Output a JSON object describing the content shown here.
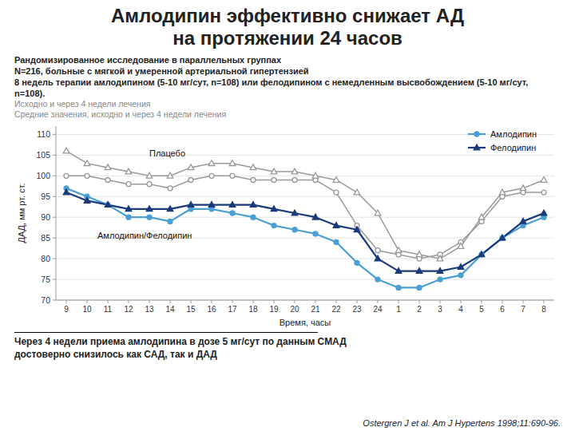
{
  "chart_data": {
    "type": "line",
    "title": [
      "Амлодипин эффективно снижает АД",
      "на протяжении 24 часов"
    ],
    "subtitle": [
      "Рандомизированное исследование в параллельных группах",
      "N=216, больные с мягкой и умеренной артериальной гипертензией",
      "8 недель терапии амлодипином (5-10 мг/сут, n=108) или фелодипином с немедленным высвобождением (5-10 мг/сут, n=108).",
      "Исходно и через 4 недели лечения",
      "Средние значения, исходно и через 4 недели лечения"
    ],
    "x_label": "Время, часы",
    "y_label": "ДАД, мм рт. ст.",
    "categories": [
      "9",
      "10",
      "11",
      "12",
      "13",
      "14",
      "15",
      "16",
      "17",
      "18",
      "19",
      "20",
      "21",
      "22",
      "23",
      "24",
      "1",
      "2",
      "3",
      "4",
      "5",
      "6",
      "7",
      "8"
    ],
    "ylim": [
      70,
      112
    ],
    "yticks": [
      70,
      75,
      80,
      85,
      90,
      95,
      100,
      105,
      110
    ],
    "grid": true,
    "legend": "upper right",
    "series": [
      {
        "color": "#999999",
        "marker": "circle",
        "values": [
          100,
          100,
          99,
          98,
          98,
          97,
          99,
          100,
          100,
          99,
          99,
          99,
          99,
          96,
          88,
          82,
          81,
          80,
          81,
          84,
          89,
          95,
          96,
          96
        ]
      },
      {
        "color": "#999999",
        "marker": "triangle",
        "values": [
          106,
          103,
          102,
          101,
          100,
          100,
          102,
          103,
          103,
          102,
          101,
          101,
          100,
          99,
          96,
          91,
          82,
          81,
          80,
          83,
          90,
          96,
          97,
          99
        ]
      },
      {
        "name": "Амлодипин",
        "color": "#4a9fd4",
        "marker": "circle",
        "values": [
          97,
          95,
          93,
          90,
          90,
          89,
          92,
          92,
          91,
          90,
          88,
          87,
          86,
          84,
          79,
          75,
          73,
          73,
          75,
          76,
          81,
          85,
          88,
          90
        ]
      },
      {
        "name": "Фелодипин",
        "color": "#1a3a7a",
        "marker": "triangle",
        "values": [
          96,
          94,
          93,
          92,
          92,
          92,
          93,
          93,
          93,
          93,
          92,
          91,
          90,
          88,
          87,
          80,
          77,
          77,
          77,
          78,
          81,
          85,
          89,
          91
        ]
      }
    ],
    "annotations": [
      "Плацебо",
      "Амлодипин/Фелодипин"
    ],
    "footnote": "Через 4 недели приема амлодипина в дозе 5 мг/сут по данным СМАД\nдостоверно снизилось как САД, так и ДАД",
    "source": "Ostergren J et al. Am J Hypertens 1998;11:690-96."
  }
}
